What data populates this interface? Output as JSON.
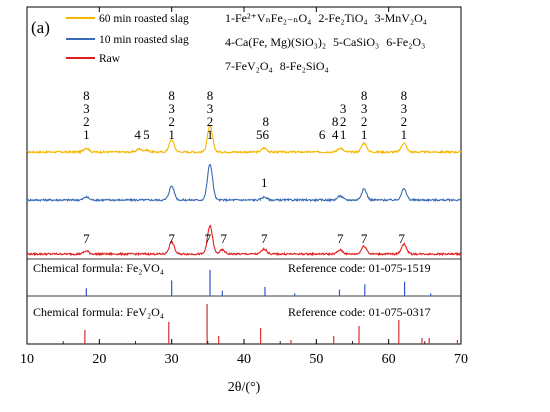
{
  "chart_data": {
    "type": "line",
    "panel_label": "(a)",
    "xlabel": "2θ/(°)",
    "xlim": [
      10,
      70
    ],
    "x_ticks": [
      10,
      20,
      30,
      40,
      50,
      60,
      70
    ],
    "y_ticks": false,
    "legend": {
      "placement": "top-left",
      "entries": [
        {
          "name": "60 min roasted slag",
          "color": "#f5b800"
        },
        {
          "name": "10 min roasted slag",
          "color": "#3a6bb5"
        },
        {
          "name": "Raw",
          "color": "#e02020"
        }
      ]
    },
    "phase_key": [
      {
        "text": "1-Fe²⁺VₙFe₂₋ₙO₄",
        "row": 0
      },
      {
        "text": "2-Fe₂TiO₄",
        "row": 0
      },
      {
        "text": "3-MnV₂O₄",
        "row": 0
      },
      {
        "text": "4-Ca(Fe, Mg)(SiO₃)₂",
        "row": 1
      },
      {
        "text": "5-CaSiO₃",
        "row": 1
      },
      {
        "text": "6-Fe₂O₃",
        "row": 1
      },
      {
        "text": "7-FeV₂O₄",
        "row": 2
      },
      {
        "text": "8-Fe₂SiO₄",
        "row": 2
      }
    ],
    "series": [
      {
        "name": "60 min roasted slag",
        "color": "#f5b800",
        "peaks": [
          [
            18.2,
            4
          ],
          [
            25.5,
            3
          ],
          [
            26.5,
            2
          ],
          [
            30.0,
            12
          ],
          [
            35.3,
            26
          ],
          [
            42.8,
            4
          ],
          [
            53.3,
            4
          ],
          [
            56.6,
            9
          ],
          [
            62.1,
            9
          ]
        ],
        "annotations": [
          {
            "x": 18.2,
            "lines": [
              "8",
              "3",
              "2",
              "1"
            ]
          },
          {
            "x": 25.3,
            "lines": [
              "4"
            ]
          },
          {
            "x": 26.5,
            "lines": [
              "5"
            ]
          },
          {
            "x": 30.0,
            "lines": [
              "8",
              "3",
              "2",
              "1"
            ]
          },
          {
            "x": 35.3,
            "lines": [
              "8",
              "3",
              "2",
              "1"
            ]
          },
          {
            "x": 42.1,
            "lines": [
              "5"
            ]
          },
          {
            "x": 43.0,
            "lines": [
              "8",
              "6"
            ]
          },
          {
            "x": 50.8,
            "lines": [
              "6"
            ]
          },
          {
            "x": 52.6,
            "lines": [
              "8",
              "4"
            ]
          },
          {
            "x": 53.7,
            "lines": [
              "3",
              "2",
              "1"
            ]
          },
          {
            "x": 56.6,
            "lines": [
              "8",
              "3",
              "2",
              "1"
            ]
          },
          {
            "x": 62.1,
            "lines": [
              "8",
              "3",
              "2",
              "1"
            ]
          }
        ]
      },
      {
        "name": "10 min roasted slag",
        "color": "#3a6bb5",
        "peaks": [
          [
            18.2,
            3
          ],
          [
            30.0,
            14
          ],
          [
            35.3,
            36
          ],
          [
            42.8,
            3
          ],
          [
            53.3,
            4
          ],
          [
            56.6,
            11
          ],
          [
            62.1,
            11
          ]
        ],
        "annotations": [
          {
            "x": 42.8,
            "lines": [
              "1"
            ]
          }
        ]
      },
      {
        "name": "Raw",
        "color": "#e02020",
        "peaks": [
          [
            18.2,
            3
          ],
          [
            30.0,
            12
          ],
          [
            35.3,
            28
          ],
          [
            37.0,
            4
          ],
          [
            42.8,
            5
          ],
          [
            53.3,
            4
          ],
          [
            56.6,
            8
          ],
          [
            62.1,
            10
          ]
        ],
        "annotations": [
          {
            "x": 18.2,
            "lines": [
              "7"
            ]
          },
          {
            "x": 30.0,
            "lines": [
              "7"
            ]
          },
          {
            "x": 35.0,
            "lines": [
              "7"
            ]
          },
          {
            "x": 37.2,
            "lines": [
              "7"
            ]
          },
          {
            "x": 42.8,
            "lines": [
              "7"
            ]
          },
          {
            "x": 53.3,
            "lines": [
              "7"
            ]
          },
          {
            "x": 56.6,
            "lines": [
              "7"
            ]
          },
          {
            "x": 61.8,
            "lines": [
              "7"
            ]
          }
        ]
      }
    ],
    "reference_patterns": [
      {
        "formula_label": "Chemical formula: Fe₂VO₄",
        "code_label": "Reference code: 01-075-1519",
        "color": "#3355cc",
        "sticks": [
          [
            18.2,
            0.3
          ],
          [
            30.0,
            0.6
          ],
          [
            35.3,
            1.0
          ],
          [
            37.0,
            0.2
          ],
          [
            42.9,
            0.35
          ],
          [
            47.0,
            0.1
          ],
          [
            53.2,
            0.25
          ],
          [
            56.7,
            0.45
          ],
          [
            62.2,
            0.55
          ],
          [
            65.8,
            0.1
          ]
        ]
      },
      {
        "formula_label": "Chemical formula: FeV₂O₄",
        "code_label": "Reference code: 01-075-0317",
        "color": "#d63030",
        "sticks": [
          [
            18.0,
            0.35
          ],
          [
            29.6,
            0.55
          ],
          [
            34.9,
            1.0
          ],
          [
            36.5,
            0.2
          ],
          [
            42.3,
            0.4
          ],
          [
            46.5,
            0.1
          ],
          [
            52.4,
            0.2
          ],
          [
            55.9,
            0.45
          ],
          [
            61.4,
            0.6
          ],
          [
            64.6,
            0.15
          ],
          [
            65.6,
            0.15
          ],
          [
            69.5,
            0.1
          ]
        ]
      }
    ]
  }
}
